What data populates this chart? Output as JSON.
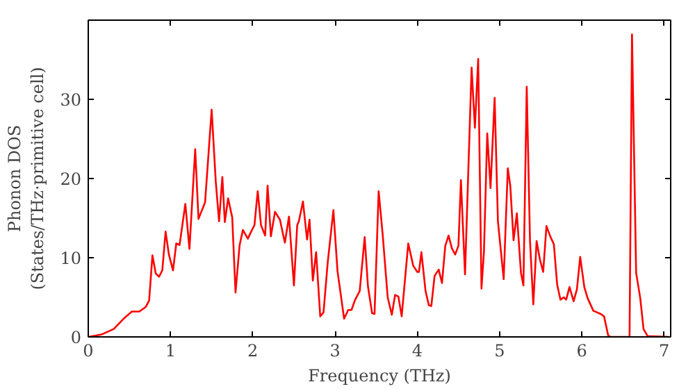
{
  "chart_data": {
    "type": "line",
    "xlabel": "Frequency (THz)",
    "ylabel": "Phonon DOS\n(States/THz·primitive cell)",
    "xlim": [
      0,
      7.08
    ],
    "ylim": [
      0,
      40
    ],
    "xticks": [
      0,
      1,
      2,
      3,
      4,
      5,
      6,
      7
    ],
    "yticks": [
      0,
      10,
      20,
      30
    ],
    "grid": false,
    "marker": "none",
    "line_style": "solid",
    "series": [
      {
        "color": "#ff0000",
        "x": [
          0,
          0.16,
          0.31,
          0.43,
          0.53,
          0.62,
          0.7,
          0.74,
          0.78,
          0.82,
          0.86,
          0.9,
          0.94,
          0.98,
          1.03,
          1.07,
          1.11,
          1.18,
          1.23,
          1.3,
          1.34,
          1.42,
          1.5,
          1.55,
          1.59,
          1.63,
          1.66,
          1.7,
          1.75,
          1.79,
          1.84,
          1.88,
          1.94,
          1.98,
          2.02,
          2.06,
          2.1,
          2.15,
          2.18,
          2.22,
          2.27,
          2.33,
          2.39,
          2.44,
          2.5,
          2.54,
          2.56,
          2.61,
          2.66,
          2.69,
          2.73,
          2.77,
          2.82,
          2.86,
          2.91,
          2.98,
          3.03,
          3.11,
          3.16,
          3.2,
          3.24,
          3.3,
          3.36,
          3.4,
          3.45,
          3.48,
          3.53,
          3.58,
          3.64,
          3.69,
          3.73,
          3.77,
          3.81,
          3.89,
          3.95,
          4.0,
          4.02,
          4.05,
          4.1,
          4.14,
          4.17,
          4.21,
          4.26,
          4.3,
          4.34,
          4.38,
          4.42,
          4.46,
          4.5,
          4.53,
          4.58,
          4.66,
          4.7,
          4.74,
          4.78,
          4.81,
          4.85,
          4.89,
          4.94,
          4.98,
          5.05,
          5.1,
          5.13,
          5.17,
          5.21,
          5.26,
          5.29,
          5.33,
          5.37,
          5.41,
          5.45,
          5.49,
          5.53,
          5.57,
          5.62,
          5.66,
          5.7,
          5.74,
          5.78,
          5.81,
          5.85,
          5.9,
          5.94,
          5.98,
          6.03,
          6.07,
          6.14,
          6.23,
          6.27,
          6.32,
          6.35,
          6.58,
          6.61,
          6.66,
          6.71,
          6.75,
          6.8,
          7.06
        ],
        "values": [
          0,
          0.3,
          1.0,
          2.3,
          3.2,
          3.2,
          3.8,
          4.6,
          10.3,
          8.0,
          7.6,
          8.4,
          13.3,
          10.4,
          8.4,
          11.8,
          11.6,
          16.8,
          11.1,
          23.7,
          14.9,
          17.0,
          28.7,
          19.6,
          14.6,
          20.2,
          14.5,
          17.5,
          15.1,
          5.6,
          11.6,
          13.5,
          12.4,
          13.3,
          14.1,
          18.4,
          14.1,
          12.8,
          19.1,
          12.7,
          15.8,
          14.8,
          11.9,
          15.2,
          6.5,
          14.1,
          14.6,
          17.1,
          12.3,
          14.8,
          7.1,
          10.7,
          2.6,
          3.1,
          9.3,
          16.0,
          8.3,
          2.3,
          3.4,
          3.4,
          4.6,
          5.8,
          12.6,
          6.4,
          3.0,
          2.9,
          18.4,
          12.8,
          5.0,
          2.8,
          5.3,
          5.1,
          2.6,
          11.8,
          9.0,
          8.2,
          8.2,
          10.7,
          5.8,
          4.0,
          3.9,
          7.7,
          8.5,
          6.8,
          11.5,
          12.8,
          11.2,
          10.4,
          11.5,
          19.8,
          7.9,
          34.0,
          26.4,
          35.1,
          6.1,
          10.7,
          25.7,
          18.8,
          30.2,
          14.6,
          7.3,
          21.3,
          19.1,
          12.2,
          15.6,
          8.1,
          6.5,
          31.6,
          12.1,
          4.1,
          12.1,
          9.8,
          8.2,
          14.0,
          12.6,
          11.7,
          6.6,
          4.7,
          5.0,
          4.7,
          6.3,
          4.5,
          6.0,
          10.1,
          6.3,
          4.9,
          3.3,
          2.9,
          2.6,
          0.2,
          0,
          0,
          38.2,
          8.1,
          4.9,
          1.0,
          0.1,
          0
        ]
      }
    ]
  }
}
